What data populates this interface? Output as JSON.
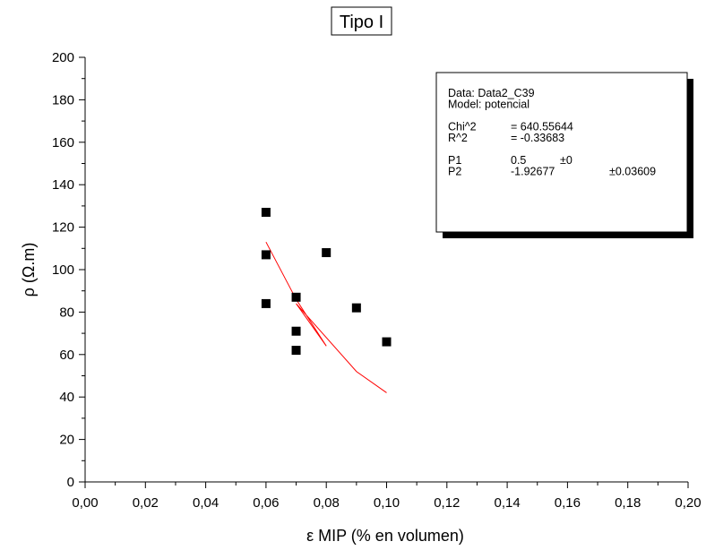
{
  "chart_data": {
    "type": "scatter",
    "title": "Tipo I",
    "xlabel": "ε MIP (% en volumen)",
    "ylabel": "ρ (Ω.m)",
    "xlim": [
      0.0,
      0.2
    ],
    "ylim": [
      0,
      200
    ],
    "x_ticks": [
      0.0,
      0.02,
      0.04,
      0.06,
      0.08,
      0.1,
      0.12,
      0.14,
      0.16,
      0.18,
      0.2
    ],
    "x_tick_labels": [
      "0,00",
      "0,02",
      "0,04",
      "0,06",
      "0,08",
      "0,10",
      "0,12",
      "0,14",
      "0,16",
      "0,18",
      "0,20"
    ],
    "y_ticks": [
      0,
      20,
      40,
      60,
      80,
      100,
      120,
      140,
      160,
      180,
      200
    ],
    "y_tick_labels": [
      "0",
      "20",
      "40",
      "60",
      "80",
      "100",
      "120",
      "140",
      "160",
      "180",
      "200"
    ],
    "grid": false,
    "points": [
      {
        "x": 0.06,
        "y": 127
      },
      {
        "x": 0.06,
        "y": 107
      },
      {
        "x": 0.06,
        "y": 84
      },
      {
        "x": 0.07,
        "y": 87
      },
      {
        "x": 0.07,
        "y": 71
      },
      {
        "x": 0.07,
        "y": 62
      },
      {
        "x": 0.08,
        "y": 108
      },
      {
        "x": 0.09,
        "y": 82
      },
      {
        "x": 0.1,
        "y": 66
      }
    ],
    "marker_color": "#000000",
    "fit_line": {
      "color": "#ff0000",
      "points": [
        {
          "x": 0.06,
          "y": 113
        },
        {
          "x": 0.07,
          "y": 86
        },
        {
          "x": 0.08,
          "y": 64
        },
        {
          "x": 0.07,
          "y": 84
        },
        {
          "x": 0.09,
          "y": 52
        },
        {
          "x": 0.1,
          "y": 42
        }
      ]
    },
    "fit_box": {
      "placement": "top-right",
      "lines": [
        {
          "label": "Data: Data2_C39",
          "value": "",
          "error": ""
        },
        {
          "label": "Model: potencial",
          "value": "",
          "error": ""
        },
        {
          "label": "",
          "value": "",
          "error": ""
        },
        {
          "label": "Chi^2",
          "value": "= 640.55644",
          "error": ""
        },
        {
          "label": "R^2",
          "value": "= -0.33683",
          "error": ""
        },
        {
          "label": "",
          "value": "",
          "error": ""
        },
        {
          "label": "P1",
          "value": "0.5",
          "error": "±0"
        },
        {
          "label": "P2",
          "value": "-1.92677",
          "error": "±0.03609"
        }
      ]
    }
  }
}
